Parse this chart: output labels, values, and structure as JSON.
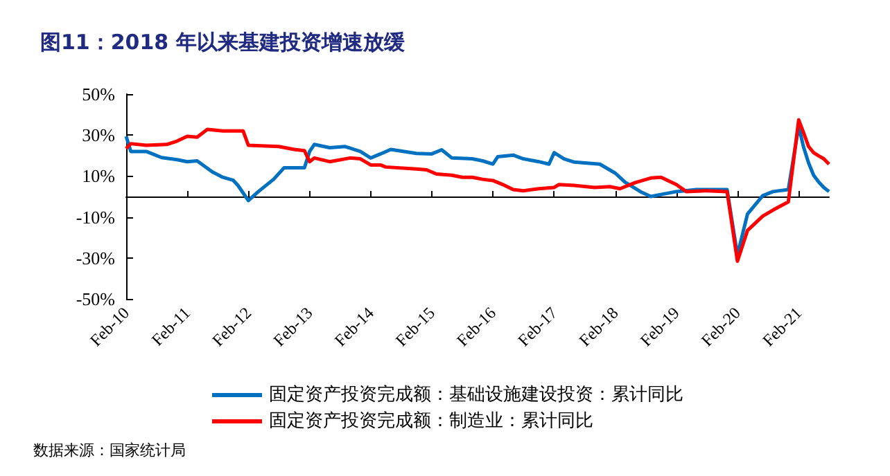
{
  "chart_data": {
    "type": "line",
    "title": "图11：2018 年以来基建投资增速放缓",
    "xlim": [
      "2010-02",
      "2021-08"
    ],
    "xticks": [
      {
        "value": "2010-02",
        "label": "Feb-10"
      },
      {
        "value": "2011-02",
        "label": "Feb-11"
      },
      {
        "value": "2012-02",
        "label": "Feb-12"
      },
      {
        "value": "2013-02",
        "label": "Feb-13"
      },
      {
        "value": "2014-02",
        "label": "Feb-14"
      },
      {
        "value": "2015-02",
        "label": "Feb-15"
      },
      {
        "value": "2016-02",
        "label": "Feb-16"
      },
      {
        "value": "2017-02",
        "label": "Feb-17"
      },
      {
        "value": "2018-02",
        "label": "Feb-18"
      },
      {
        "value": "2019-02",
        "label": "Feb-19"
      },
      {
        "value": "2020-02",
        "label": "Feb-20"
      },
      {
        "value": "2021-02",
        "label": "Feb-21"
      }
    ],
    "ylim": [
      -50,
      50
    ],
    "yticks": [
      {
        "value": -50,
        "label": "-50%"
      },
      {
        "value": -30,
        "label": "-30%"
      },
      {
        "value": -10,
        "label": "-10%"
      },
      {
        "value": 10,
        "label": "10%"
      },
      {
        "value": 30,
        "label": "30%"
      },
      {
        "value": 50,
        "label": "50%"
      }
    ],
    "legend": "bottom",
    "series": [
      {
        "name": "固定资产投资完成额：基础设施建设投资：累计同比",
        "color": "#0070c0",
        "x": [
          "2010-02",
          "2010-03",
          "2010-06",
          "2010-09",
          "2010-12",
          "2011-02",
          "2011-04",
          "2011-07",
          "2011-09",
          "2011-11",
          "2011-12",
          "2012-02",
          "2012-04",
          "2012-07",
          "2012-09",
          "2013-01",
          "2013-02",
          "2013-03",
          "2013-06",
          "2013-09",
          "2013-12",
          "2014-02",
          "2014-04",
          "2014-06",
          "2014-11",
          "2015-02",
          "2015-04",
          "2015-06",
          "2015-10",
          "2015-12",
          "2016-02",
          "2016-03",
          "2016-06",
          "2016-08",
          "2016-11",
          "2017-01",
          "2017-02",
          "2017-04",
          "2017-06",
          "2017-11",
          "2018-02",
          "2018-04",
          "2018-07",
          "2018-09",
          "2019-02",
          "2019-06",
          "2019-12",
          "2020-02",
          "2020-04",
          "2020-07",
          "2020-09",
          "2020-12",
          "2021-02",
          "2021-03",
          "2021-04",
          "2021-05",
          "2021-06",
          "2021-07",
          "2021-08"
        ],
        "values": [
          29.4,
          22,
          22,
          19,
          18,
          17,
          17.4,
          12,
          9.4,
          8,
          5.4,
          -2,
          2.4,
          8.4,
          14,
          14,
          22,
          25.4,
          23.8,
          24.4,
          22,
          18.8,
          20.8,
          23,
          21,
          20.8,
          22.8,
          18.8,
          18.4,
          17.4,
          15.8,
          19.4,
          20.2,
          18.4,
          17,
          15.8,
          21.4,
          18.4,
          16.8,
          15.8,
          11.4,
          7,
          2.4,
          0,
          2.4,
          3.4,
          3.4,
          -28.6,
          -8.6,
          0.4,
          2.4,
          3.4,
          34.4,
          24.4,
          16.4,
          10.4,
          7,
          4.4,
          2.4
        ]
      },
      {
        "name": "固定资产投资完成额：制造业：累计同比",
        "color": "#ff0000",
        "x": [
          "2010-02",
          "2010-03",
          "2010-06",
          "2010-10",
          "2010-12",
          "2011-02",
          "2011-04",
          "2011-06",
          "2011-09",
          "2012-01",
          "2012-02",
          "2012-08",
          "2012-11",
          "2013-01",
          "2013-02",
          "2013-03",
          "2013-06",
          "2013-10",
          "2013-12",
          "2014-02",
          "2014-04",
          "2014-05",
          "2014-11",
          "2015-01",
          "2015-03",
          "2015-06",
          "2015-08",
          "2015-10",
          "2015-12",
          "2016-02",
          "2016-04",
          "2016-06",
          "2016-08",
          "2016-11",
          "2017-02",
          "2017-03",
          "2017-06",
          "2017-10",
          "2018-01",
          "2018-03",
          "2018-06",
          "2018-09",
          "2018-11",
          "2019-02",
          "2019-04",
          "2019-08",
          "2019-12",
          "2020-02",
          "2020-04",
          "2020-07",
          "2020-09",
          "2020-12",
          "2021-02",
          "2021-03",
          "2021-04",
          "2021-05",
          "2021-06",
          "2021-07",
          "2021-08"
        ],
        "values": [
          23.4,
          25.8,
          25,
          25.4,
          27,
          29.4,
          29,
          32.8,
          32,
          32,
          25,
          24.4,
          23,
          22.4,
          17,
          18.8,
          17,
          18.8,
          18.4,
          15.4,
          15.4,
          14.4,
          13.4,
          13,
          11,
          10.4,
          9.4,
          9.4,
          8.4,
          7.8,
          5.8,
          3.4,
          2.8,
          3.8,
          4.4,
          5.8,
          5.4,
          4.4,
          4.8,
          3.8,
          6.8,
          9,
          9.4,
          5.8,
          2.4,
          2.8,
          2.4,
          -31.6,
          -16.6,
          -9.6,
          -6.6,
          -2.6,
          37.4,
          31.4,
          24.4,
          21.4,
          19.8,
          18.4,
          15.8
        ]
      }
    ],
    "annotations": [
      "数据来源：国家统计局"
    ]
  }
}
